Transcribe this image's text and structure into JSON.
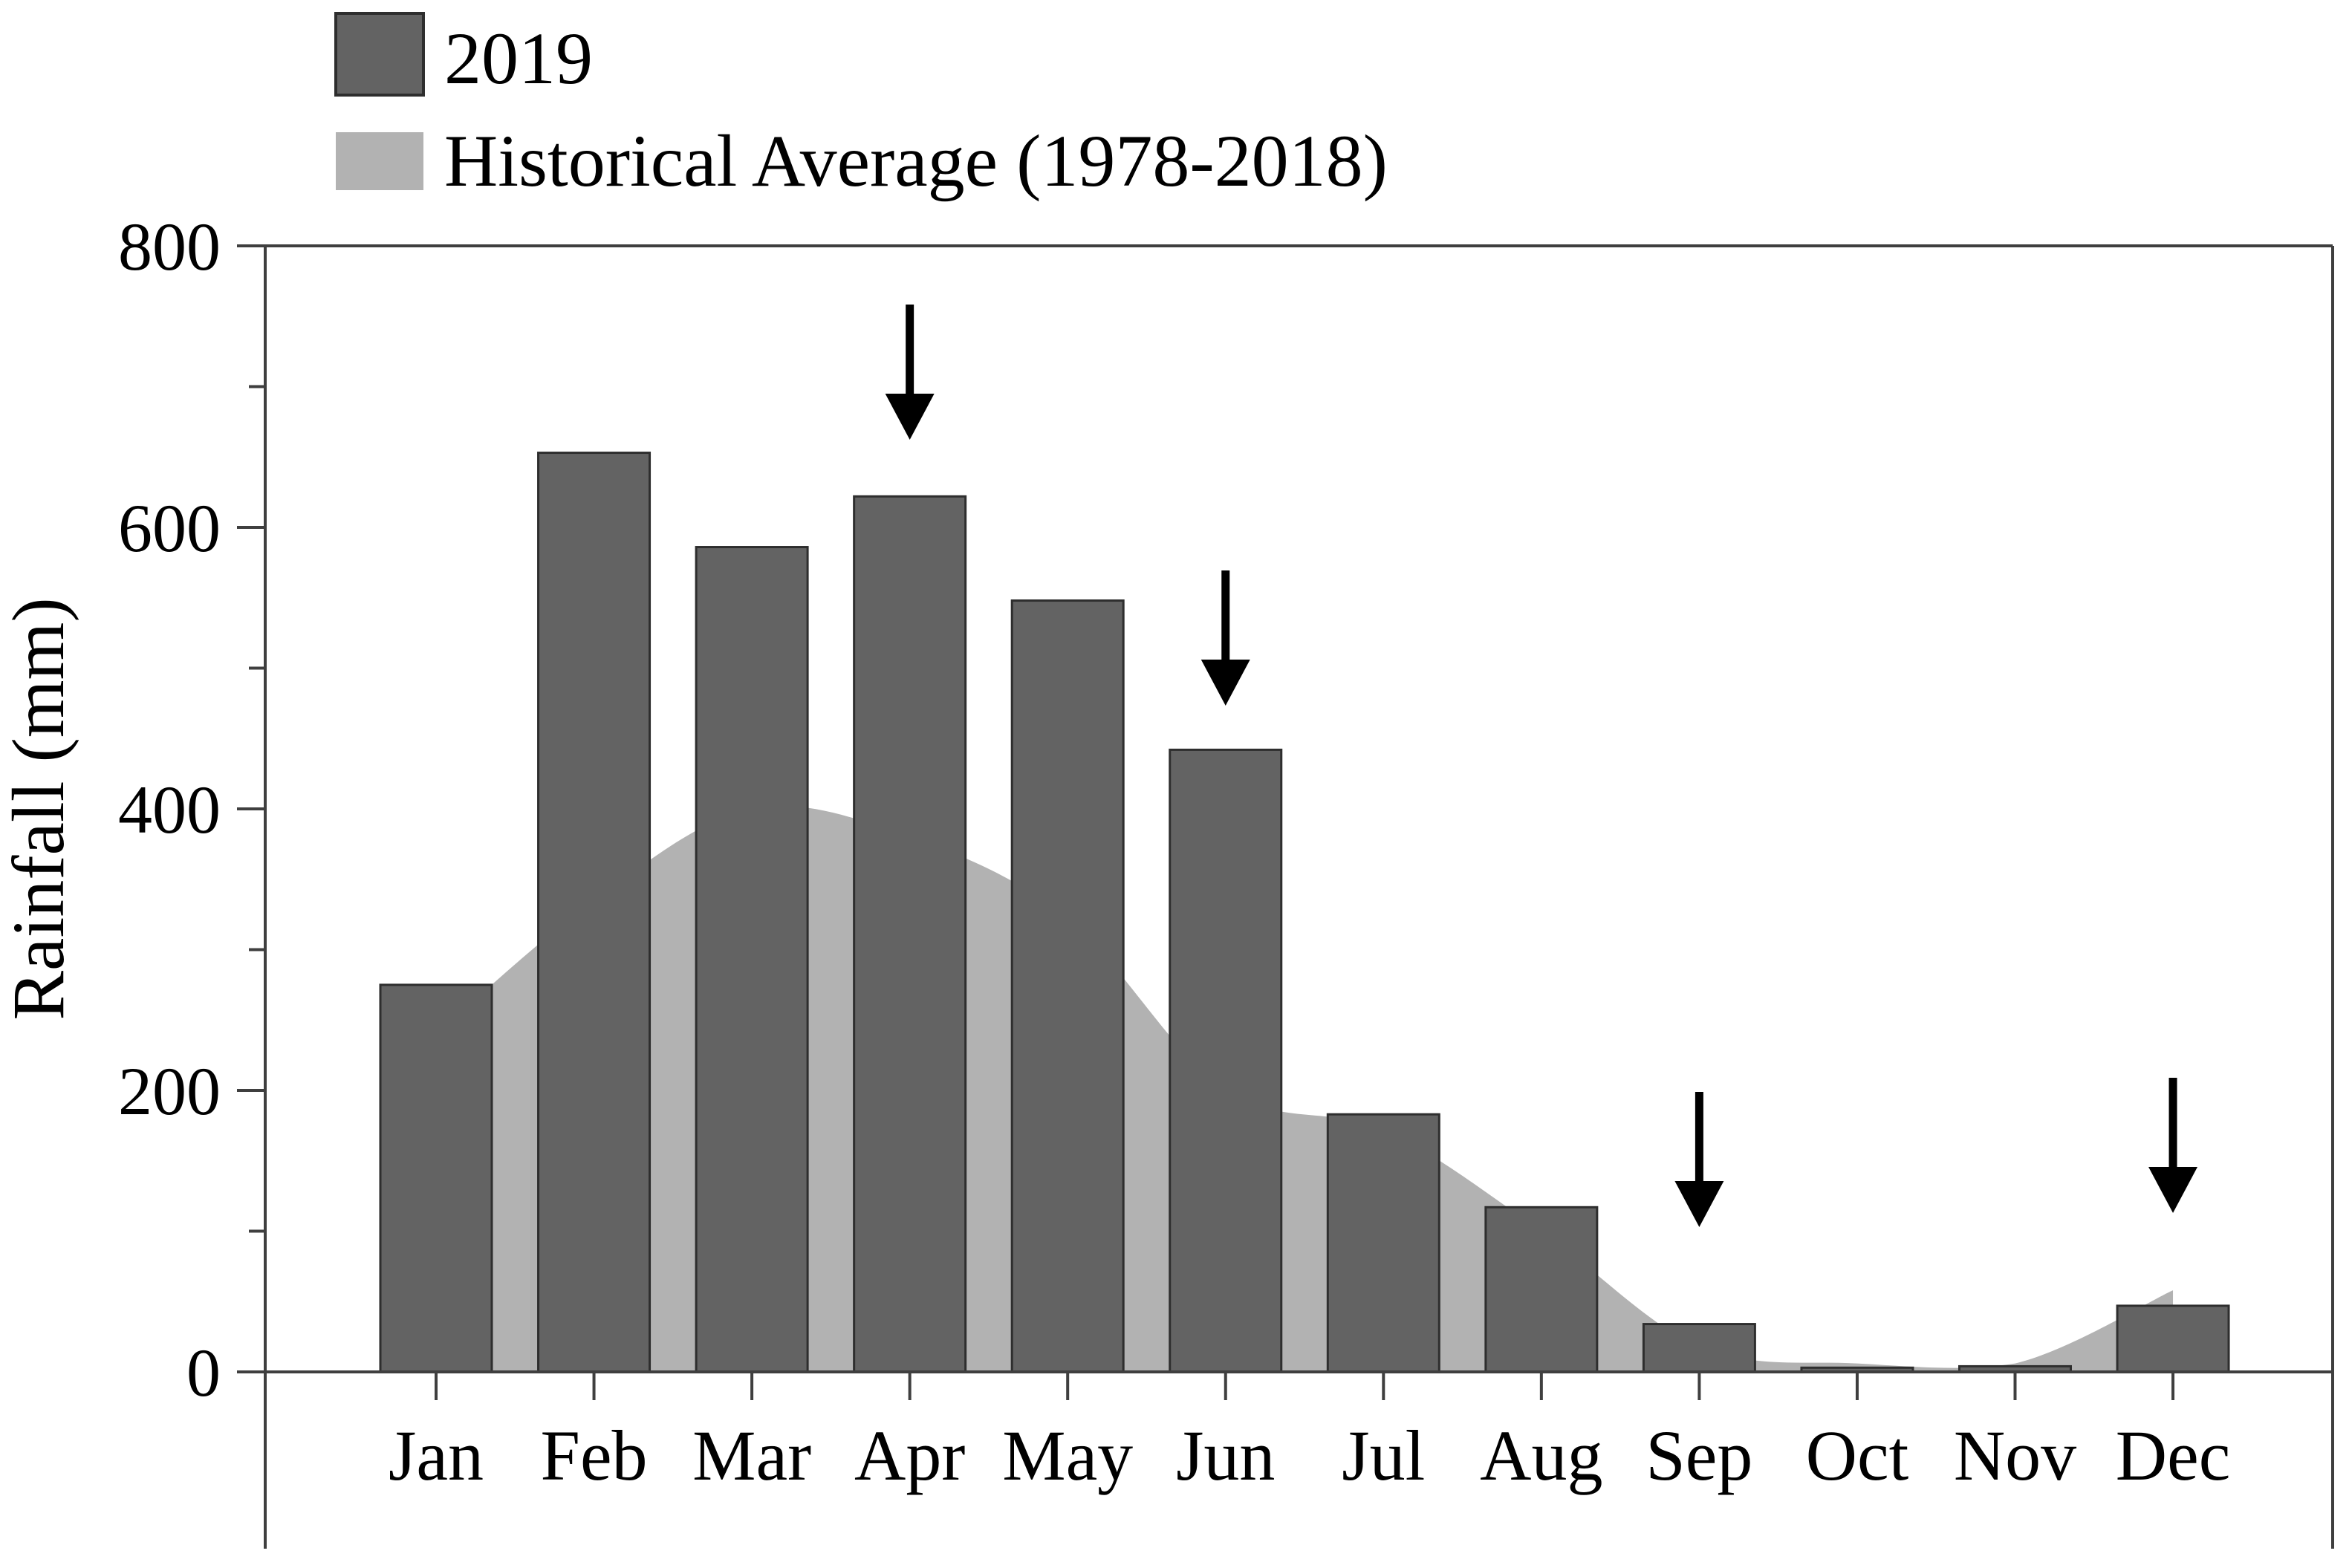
{
  "figure": {
    "ylabel": "Rainfall (mm)",
    "background": "#ffffff"
  },
  "legend": {
    "items": [
      {
        "label": "2019",
        "swatch": "dark-gray"
      },
      {
        "label": "Historical Average (1978-2018)",
        "swatch": "light-gray"
      }
    ]
  },
  "colors": {
    "bar_fill": "#636363",
    "bar_border": "#2e2e2e",
    "area_fill": "#b2b2b2",
    "axis_line": "#3f3f3f",
    "text": "#000000",
    "arrow": "#000000"
  },
  "chart_data": {
    "type": "bar",
    "title": "",
    "xlabel": "",
    "ylabel": "Rainfall (mm)",
    "ylim": [
      0,
      800
    ],
    "yticks": [
      0,
      200,
      400,
      600,
      800
    ],
    "minor_yticks": [
      100,
      300,
      500,
      700
    ],
    "grid": "off",
    "legend_position": "top-left",
    "categories": [
      "Jan",
      "Feb",
      "Mar",
      "Apr",
      "May",
      "Jun",
      "Jul",
      "Aug",
      "Sep",
      "Oct",
      "Nov",
      "Dec"
    ],
    "series": [
      {
        "name": "2019",
        "type": "bar",
        "color": "#636363",
        "values": [
          275,
          653,
          586,
          622,
          548,
          442,
          183,
          117,
          34,
          3,
          4,
          47
        ]
      },
      {
        "name": "Historical Average (1978-2018)",
        "type": "area",
        "color": "#b2b2b2",
        "values": [
          240,
          335,
          400,
          380,
          322,
          200,
          172,
          100,
          18,
          6,
          6,
          58
        ]
      }
    ],
    "annotations": [
      {
        "type": "down-arrow",
        "month": "Apr"
      },
      {
        "type": "down-arrow",
        "month": "Jun"
      },
      {
        "type": "down-arrow",
        "month": "Sep"
      },
      {
        "type": "down-arrow",
        "month": "Dec"
      }
    ]
  }
}
